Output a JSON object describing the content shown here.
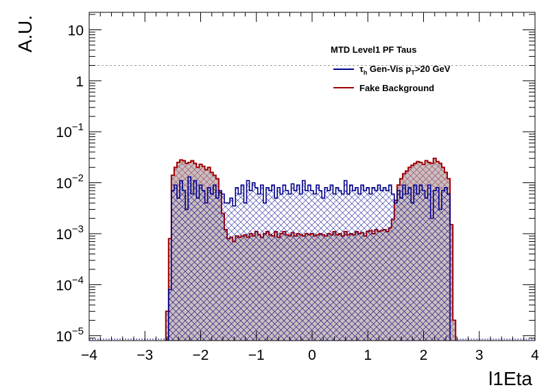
{
  "chart_data": {
    "type": "area",
    "ylabel": "A.U.",
    "xlabel": "l1Eta",
    "yscale": "log",
    "xlim": [
      -4,
      4
    ],
    "ylim": [
      8e-06,
      22
    ],
    "x_ticks": [
      -4,
      -3,
      -2,
      -1,
      0,
      1,
      2,
      3,
      4
    ],
    "x_tick_labels": [
      "−4",
      "−3",
      "−2",
      "−1",
      "0",
      "1",
      "2",
      "3",
      "4"
    ],
    "y_ticks": [
      {
        "value": 10,
        "mant": "10",
        "exp": ""
      },
      {
        "value": 1,
        "mant": "1",
        "exp": ""
      },
      {
        "value": 0.1,
        "mant": "10",
        "exp": "−1"
      },
      {
        "value": 0.01,
        "mant": "10",
        "exp": "−2"
      },
      {
        "value": 0.001,
        "mant": "10",
        "exp": "−3"
      },
      {
        "value": 0.0001,
        "mant": "10",
        "exp": "−4"
      },
      {
        "value": 1e-05,
        "mant": "10",
        "exp": "−5"
      }
    ],
    "reference_line": {
      "y": 2,
      "style": "dashed"
    },
    "legend": {
      "title": "MTD Level1 PF Taus",
      "placement": "top-right",
      "entries": [
        {
          "main": "τ",
          "sub1": "h",
          "mid": " Gen-Vis p",
          "sub2": "T",
          "tail": ">20 GeV",
          "color": "#00008b"
        },
        {
          "main": "Fake Background",
          "color": "#a00000"
        }
      ]
    },
    "series": [
      {
        "name": "Fake Background",
        "color": "#a00000",
        "fill": "#c8c0c0",
        "step": 0.05,
        "x": [
          -2.6,
          -2.55,
          -2.5,
          -2.45,
          -2.4,
          -2.35,
          -2.3,
          -2.25,
          -2.2,
          -2.15,
          -2.1,
          -2.05,
          -2.0,
          -1.95,
          -1.9,
          -1.85,
          -1.8,
          -1.75,
          -1.7,
          -1.65,
          -1.6,
          -1.55,
          -1.5,
          -1.45,
          -1.4,
          -1.35,
          -1.3,
          -1.25,
          -1.2,
          -1.15,
          -1.1,
          -1.05,
          -1.0,
          -0.95,
          -0.9,
          -0.85,
          -0.8,
          -0.75,
          -0.7,
          -0.65,
          -0.6,
          -0.55,
          -0.5,
          -0.45,
          -0.4,
          -0.35,
          -0.3,
          -0.25,
          -0.2,
          -0.15,
          -0.1,
          -0.05,
          0.0,
          0.05,
          0.1,
          0.15,
          0.2,
          0.25,
          0.3,
          0.35,
          0.4,
          0.45,
          0.5,
          0.55,
          0.6,
          0.65,
          0.7,
          0.75,
          0.8,
          0.85,
          0.9,
          0.95,
          1.0,
          1.05,
          1.1,
          1.15,
          1.2,
          1.25,
          1.3,
          1.35,
          1.4,
          1.45,
          1.5,
          1.55,
          1.6,
          1.65,
          1.7,
          1.75,
          1.8,
          1.85,
          1.9,
          1.95,
          2.0,
          2.05,
          2.1,
          2.15,
          2.2,
          2.25,
          2.3,
          2.35,
          2.4,
          2.45,
          2.5,
          2.55
        ],
        "y": [
          3e-05,
          0.0008,
          0.014,
          0.02,
          0.025,
          0.028,
          0.027,
          0.024,
          0.025,
          0.027,
          0.024,
          0.02,
          0.023,
          0.021,
          0.018,
          0.02,
          0.016,
          0.014,
          0.012,
          0.0065,
          0.0025,
          0.0012,
          0.0008,
          0.00085,
          0.0007,
          0.0009,
          0.00085,
          0.0009,
          0.00095,
          0.00085,
          0.001,
          0.0009,
          0.0011,
          0.00095,
          0.00085,
          0.001,
          0.0011,
          0.00095,
          0.0009,
          0.0011,
          0.00085,
          0.001,
          0.0011,
          0.00095,
          0.0009,
          0.00105,
          0.0009,
          0.001,
          0.00095,
          0.0009,
          0.001,
          0.00095,
          0.001,
          0.0009,
          0.00095,
          0.001,
          0.00095,
          0.0009,
          0.001,
          0.00095,
          0.0011,
          0.00095,
          0.001,
          0.0009,
          0.0011,
          0.00095,
          0.001,
          0.00095,
          0.0011,
          0.001,
          0.00105,
          0.0009,
          0.0011,
          0.00115,
          0.001,
          0.0012,
          0.0011,
          0.00115,
          0.0012,
          0.0011,
          0.0013,
          0.0019,
          0.0045,
          0.009,
          0.012,
          0.015,
          0.017,
          0.02,
          0.022,
          0.024,
          0.026,
          0.025,
          0.023,
          0.027,
          0.025,
          0.024,
          0.03,
          0.026,
          0.024,
          0.02,
          0.016,
          0.012,
          0.0015,
          2e-05
        ]
      },
      {
        "name": "τh Gen-Vis pT>20 GeV",
        "color": "#00008b",
        "step": 0.05,
        "x": [
          -2.55,
          -2.5,
          -2.45,
          -2.4,
          -2.35,
          -2.3,
          -2.25,
          -2.2,
          -2.15,
          -2.1,
          -2.05,
          -2.0,
          -1.95,
          -1.9,
          -1.85,
          -1.8,
          -1.75,
          -1.7,
          -1.65,
          -1.6,
          -1.55,
          -1.5,
          -1.45,
          -1.4,
          -1.35,
          -1.3,
          -1.25,
          -1.2,
          -1.15,
          -1.1,
          -1.05,
          -1.0,
          -0.95,
          -0.9,
          -0.85,
          -0.8,
          -0.75,
          -0.7,
          -0.65,
          -0.6,
          -0.55,
          -0.5,
          -0.45,
          -0.4,
          -0.35,
          -0.3,
          -0.25,
          -0.2,
          -0.15,
          -0.1,
          -0.05,
          0.0,
          0.05,
          0.1,
          0.15,
          0.2,
          0.25,
          0.3,
          0.35,
          0.4,
          0.45,
          0.5,
          0.55,
          0.6,
          0.65,
          0.7,
          0.75,
          0.8,
          0.85,
          0.9,
          0.95,
          1.0,
          1.05,
          1.1,
          1.15,
          1.2,
          1.25,
          1.3,
          1.35,
          1.4,
          1.45,
          1.5,
          1.55,
          1.6,
          1.65,
          1.7,
          1.75,
          1.8,
          1.85,
          1.9,
          1.95,
          2.0,
          2.05,
          2.1,
          2.15,
          2.2,
          2.25,
          2.3,
          2.35,
          2.4,
          2.45
        ],
        "y": [
          8e-05,
          0.007,
          0.009,
          0.005,
          0.011,
          0.007,
          0.003,
          0.013,
          0.006,
          0.011,
          0.005,
          0.009,
          0.007,
          0.004,
          0.008,
          0.006,
          0.009,
          0.005,
          0.007,
          0.006,
          0.004,
          0.004,
          0.005,
          0.0035,
          0.008,
          0.006,
          0.009,
          0.004,
          0.011,
          0.007,
          0.01,
          0.008,
          0.006,
          0.009,
          0.004,
          0.008,
          0.007,
          0.009,
          0.005,
          0.008,
          0.006,
          0.009,
          0.007,
          0.006,
          0.0095,
          0.007,
          0.009,
          0.006,
          0.011,
          0.007,
          0.009,
          0.007,
          0.006,
          0.009,
          0.007,
          0.005,
          0.008,
          0.007,
          0.009,
          0.006,
          0.008,
          0.007,
          0.006,
          0.011,
          0.006,
          0.009,
          0.007,
          0.008,
          0.006,
          0.009,
          0.007,
          0.008,
          0.006,
          0.008,
          0.007,
          0.009,
          0.007,
          0.008,
          0.007,
          0.009,
          0.006,
          0.004,
          0.007,
          0.005,
          0.009,
          0.006,
          0.008,
          0.004,
          0.009,
          0.006,
          0.009,
          0.007,
          0.005,
          0.009,
          0.002,
          0.007,
          0.008,
          0.003,
          0.007,
          0.008,
          0.006
        ]
      }
    ]
  }
}
